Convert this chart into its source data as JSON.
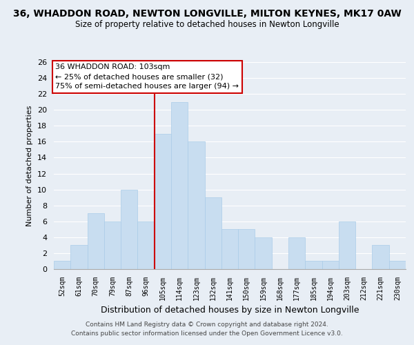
{
  "title": "36, WHADDON ROAD, NEWTON LONGVILLE, MILTON KEYNES, MK17 0AW",
  "subtitle": "Size of property relative to detached houses in Newton Longville",
  "xlabel": "Distribution of detached houses by size in Newton Longville",
  "ylabel": "Number of detached properties",
  "bar_color": "#c8ddf0",
  "bar_edge_color": "#aacce8",
  "grid_color": "#ffffff",
  "bg_color": "#e8eef5",
  "categories": [
    "52sqm",
    "61sqm",
    "70sqm",
    "79sqm",
    "87sqm",
    "96sqm",
    "105sqm",
    "114sqm",
    "123sqm",
    "132sqm",
    "141sqm",
    "150sqm",
    "159sqm",
    "168sqm",
    "177sqm",
    "185sqm",
    "194sqm",
    "203sqm",
    "212sqm",
    "221sqm",
    "230sqm"
  ],
  "values": [
    1,
    3,
    7,
    6,
    10,
    6,
    17,
    21,
    16,
    9,
    5,
    5,
    4,
    0,
    4,
    1,
    1,
    6,
    0,
    3,
    1
  ],
  "ylim": [
    0,
    26
  ],
  "yticks": [
    0,
    2,
    4,
    6,
    8,
    10,
    12,
    14,
    16,
    18,
    20,
    22,
    24,
    26
  ],
  "vline_color": "#cc0000",
  "annotation_title": "36 WHADDON ROAD: 103sqm",
  "annotation_line1": "← 25% of detached houses are smaller (32)",
  "annotation_line2": "75% of semi-detached houses are larger (94) →",
  "annotation_box_color": "#ffffff",
  "annotation_box_edge": "#cc0000",
  "footer1": "Contains HM Land Registry data © Crown copyright and database right 2024.",
  "footer2": "Contains public sector information licensed under the Open Government Licence v3.0."
}
